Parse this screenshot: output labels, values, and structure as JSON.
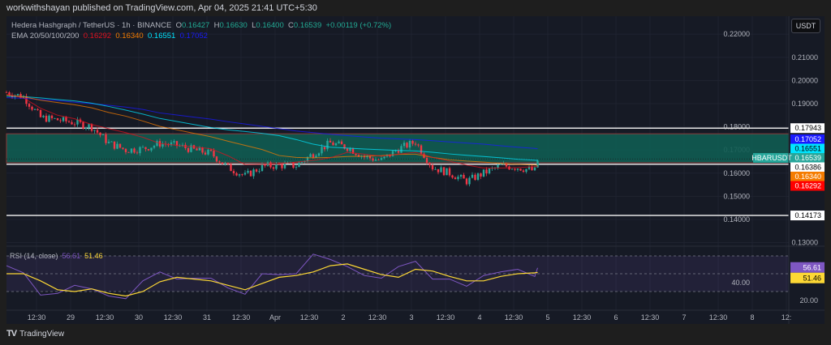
{
  "header": {
    "attribution": "workwithshayan published on TradingView.com, Apr 04, 2025 21:41 UTC+5:30"
  },
  "legend": {
    "symbol": "Hedera Hashgraph / TetherUS · 1h · BINANCE",
    "o_label": "O",
    "o": "0.16427",
    "h_label": "H",
    "h": "0.16630",
    "l_label": "L",
    "l": "0.16400",
    "c_label": "C",
    "c": "0.16539",
    "change": "+0.00119 (+0.72%)",
    "ema_label": "EMA 20/50/100/200",
    "ema20": "0.16292",
    "ema50": "0.16340",
    "ema100": "0.16551",
    "ema200": "0.17052",
    "rsi_label": "RSI (14, close)",
    "rsi": "56.61",
    "rsi_ma": "51.46"
  },
  "currency_button": "USDT",
  "footer": {
    "logo_text": "TradingView"
  },
  "colors": {
    "up": "#26a69a",
    "down": "#f23645",
    "ema20": "#e0101e",
    "ema50": "#f57c00",
    "ema100": "#00e5ff",
    "ema200": "#1a1aff",
    "rsi": "#7e57c2",
    "rsi_ma": "#fdd835",
    "zone": "#0f5c52"
  },
  "chart_data": {
    "type": "candlestick",
    "interval": "1h",
    "symbol_label": "HBARUSDT",
    "price_ticks": [
      "0.22000",
      "0.21000",
      "0.20000",
      "0.19000",
      "0.18000",
      "0.17000",
      "0.16000",
      "0.15000",
      "0.14000",
      "0.13000"
    ],
    "price_range": [
      0.127,
      0.225
    ],
    "time_ticks": [
      "12:30",
      "29",
      "12:30",
      "30",
      "12:30",
      "31",
      "12:30",
      "Apr",
      "12:30",
      "2",
      "12:30",
      "3",
      "12:30",
      "4",
      "12:30",
      "5",
      "12:30",
      "6",
      "12:30",
      "7",
      "12:30",
      "8",
      "12:"
    ],
    "levels": [
      {
        "price": 0.17943,
        "label": "0.17943"
      },
      {
        "price": 0.16386,
        "label": "0.16386"
      },
      {
        "price": 0.14173,
        "label": "0.14173"
      }
    ],
    "zone": [
      0.1645,
      0.177
    ],
    "price_labels": [
      {
        "label": "0.17052",
        "kind": "ema200"
      },
      {
        "label": "0.16551",
        "kind": "ema100"
      },
      {
        "label": "0.16539",
        "kind": "last",
        "name": "HBARUSDT"
      },
      {
        "label": "0.16386",
        "kind": "level"
      },
      {
        "label": "0.16340",
        "kind": "ema50"
      },
      {
        "label": "0.16292",
        "kind": "ema20"
      }
    ],
    "rsi_levels": [
      70,
      50,
      30
    ],
    "rsi_ticks": [
      "40.00",
      "20.00"
    ],
    "columns": [
      "time",
      "close",
      "ema20",
      "ema50",
      "ema100",
      "ema200",
      "rsi",
      "rsi_ma"
    ],
    "rows": [
      [
        "2025-03-28T02:00",
        0.1949,
        0.194,
        0.1937,
        0.1932,
        0.1926,
        59,
        50
      ],
      [
        "2025-03-28T08:00",
        0.193,
        0.1925,
        0.193,
        0.193,
        0.1923,
        51,
        50
      ],
      [
        "2025-03-28T14:00",
        0.184,
        0.188,
        0.1915,
        0.1925,
        0.1918,
        26,
        42
      ],
      [
        "2025-03-28T20:00",
        0.183,
        0.185,
        0.1905,
        0.1918,
        0.1913,
        28,
        32
      ],
      [
        "2025-03-29T02:00",
        0.1818,
        0.1835,
        0.1895,
        0.1912,
        0.1906,
        37,
        30
      ],
      [
        "2025-03-29T08:00",
        0.18,
        0.181,
        0.1882,
        0.1902,
        0.19,
        33,
        33
      ],
      [
        "2025-03-29T14:00",
        0.173,
        0.1792,
        0.1862,
        0.1888,
        0.1893,
        25,
        28
      ],
      [
        "2025-03-29T20:00",
        0.17,
        0.1775,
        0.1846,
        0.1872,
        0.1885,
        22,
        25
      ],
      [
        "2025-03-30T02:00",
        0.1705,
        0.1755,
        0.1825,
        0.1855,
        0.1875,
        42,
        30
      ],
      [
        "2025-03-30T08:00",
        0.1728,
        0.1728,
        0.1802,
        0.1836,
        0.186,
        52,
        41
      ],
      [
        "2025-03-30T14:00",
        0.172,
        0.172,
        0.1787,
        0.1823,
        0.1851,
        44,
        46
      ],
      [
        "2025-03-30T20:00",
        0.17,
        0.1714,
        0.1772,
        0.181,
        0.1842,
        45,
        44
      ],
      [
        "2025-03-31T02:00",
        0.1685,
        0.1705,
        0.1757,
        0.1797,
        0.1833,
        45,
        42
      ],
      [
        "2025-03-31T08:00",
        0.1625,
        0.1675,
        0.1738,
        0.1787,
        0.1822,
        34,
        37
      ],
      [
        "2025-03-31T14:00",
        0.1588,
        0.1637,
        0.172,
        0.178,
        0.1812,
        27,
        32
      ],
      [
        "2025-03-31T20:00",
        0.1628,
        0.1638,
        0.1702,
        0.1772,
        0.1802,
        50,
        39
      ],
      [
        "2025-04-01T02:00",
        0.1634,
        0.164,
        0.1676,
        0.1762,
        0.1792,
        49,
        46
      ],
      [
        "2025-04-01T08:00",
        0.1632,
        0.1648,
        0.1668,
        0.1745,
        0.1782,
        50,
        48
      ],
      [
        "2025-04-01T14:00",
        0.1685,
        0.1655,
        0.1666,
        0.1725,
        0.1775,
        72,
        52
      ],
      [
        "2025-04-01T20:00",
        0.173,
        0.1666,
        0.1668,
        0.1712,
        0.1768,
        66,
        59
      ],
      [
        "2025-04-02T02:00",
        0.1712,
        0.169,
        0.1672,
        0.1708,
        0.1762,
        58,
        61
      ],
      [
        "2025-04-02T08:00",
        0.167,
        0.1682,
        0.1673,
        0.1704,
        0.1756,
        48,
        55
      ],
      [
        "2025-04-02T14:00",
        0.1655,
        0.1673,
        0.1676,
        0.1701,
        0.1751,
        45,
        49
      ],
      [
        "2025-04-02T20:00",
        0.1705,
        0.1682,
        0.1681,
        0.1698,
        0.1748,
        58,
        46
      ],
      [
        "2025-04-03T02:00",
        0.1735,
        0.169,
        0.1682,
        0.1696,
        0.1745,
        64,
        55
      ],
      [
        "2025-04-03T08:00",
        0.1625,
        0.1668,
        0.1668,
        0.169,
        0.174,
        44,
        53
      ],
      [
        "2025-04-03T14:00",
        0.16,
        0.1652,
        0.1658,
        0.1683,
        0.1735,
        44,
        47
      ],
      [
        "2025-04-03T20:00",
        0.1565,
        0.1635,
        0.1652,
        0.1677,
        0.173,
        36,
        42
      ],
      [
        "2025-04-04T02:00",
        0.16,
        0.1622,
        0.1648,
        0.1672,
        0.1725,
        48,
        42
      ],
      [
        "2025-04-04T08:00",
        0.1632,
        0.1622,
        0.1642,
        0.1666,
        0.1718,
        52,
        47
      ],
      [
        "2025-04-04T14:00",
        0.1625,
        0.1624,
        0.1638,
        0.166,
        0.1712,
        55,
        50
      ],
      [
        "2025-04-04T20:00",
        0.161,
        0.1628,
        0.1635,
        0.1656,
        0.1707,
        47,
        51
      ],
      [
        "2025-04-04T21:00",
        0.16539,
        0.16292,
        0.1634,
        0.16551,
        0.17052,
        56.61,
        51.46
      ]
    ]
  }
}
